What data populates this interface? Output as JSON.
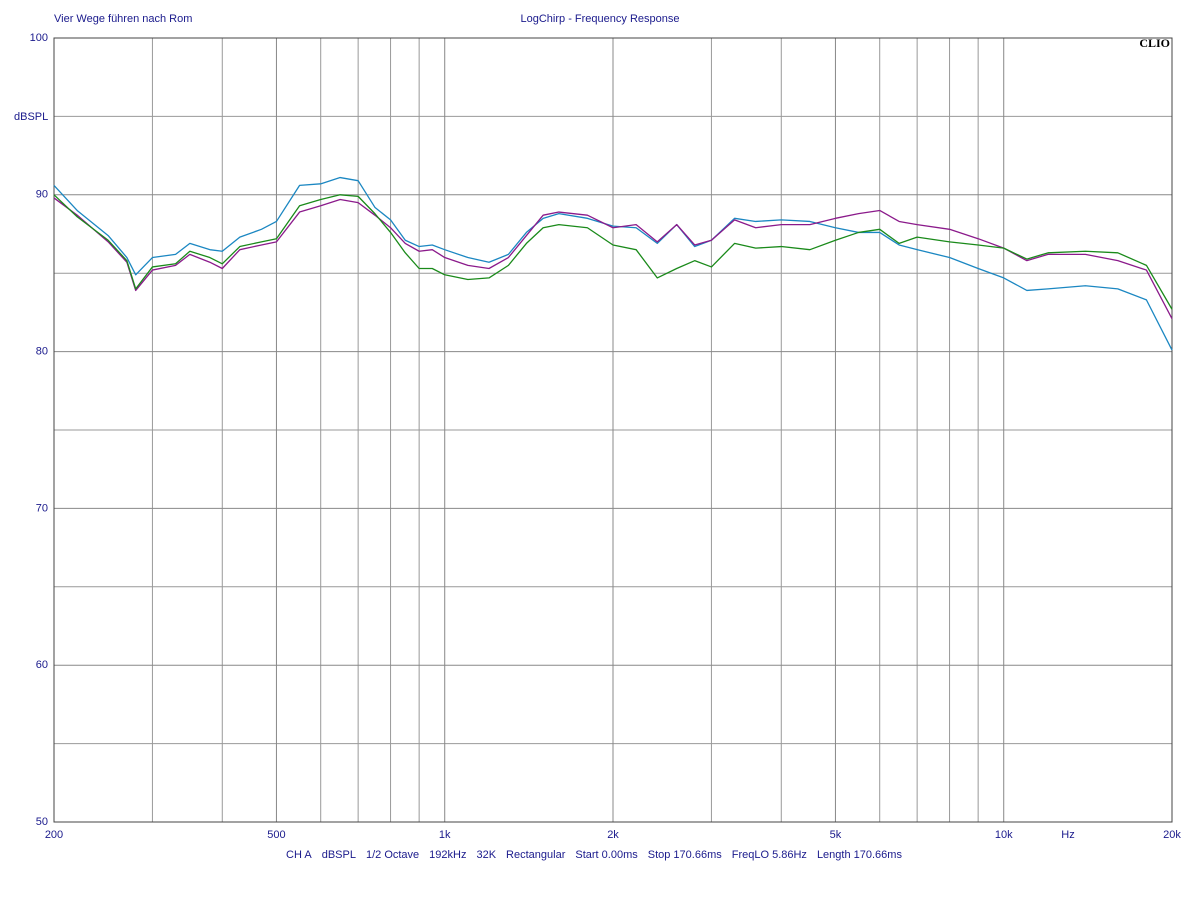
{
  "chart_data": {
    "type": "line",
    "title": "LogChirp - Frequency Response",
    "subtitle": "Vier Wege führen nach Rom",
    "brand": "CLIO",
    "y_label": "dBSPL",
    "x_label": "Hz",
    "footer": [
      "CH A",
      "dBSPL",
      "1/2 Octave",
      "192kHz",
      "32K",
      "Rectangular",
      "Start 0.00ms",
      "Stop 170.66ms",
      "FreqLO 5.86Hz",
      "Length 170.66ms"
    ],
    "log_x": true,
    "grid": true,
    "xlim": [
      200,
      20000
    ],
    "ylim": [
      50,
      100
    ],
    "xticks": [
      200,
      500,
      {
        "value": 1000,
        "label": "1k"
      },
      {
        "value": 2000,
        "label": "2k"
      },
      {
        "value": 5000,
        "label": "5k"
      },
      {
        "value": 10000,
        "label": "10k"
      },
      {
        "value": 20000,
        "label": "20k"
      }
    ],
    "x_minor_grid": [
      300,
      400,
      600,
      700,
      800,
      900,
      3000,
      4000,
      6000,
      7000,
      8000,
      9000
    ],
    "yticks": [
      50,
      60,
      70,
      80,
      90,
      100
    ],
    "y_minor_grid": [
      55,
      65,
      75,
      85,
      95
    ],
    "x": [
      200,
      220,
      250,
      270,
      280,
      300,
      330,
      350,
      380,
      400,
      430,
      470,
      500,
      550,
      600,
      650,
      700,
      750,
      800,
      850,
      900,
      950,
      1000,
      1100,
      1200,
      1300,
      1400,
      1500,
      1600,
      1800,
      2000,
      2200,
      2400,
      2600,
      2800,
      3000,
      3300,
      3600,
      4000,
      4500,
      5000,
      5500,
      6000,
      6500,
      7000,
      8000,
      9000,
      10000,
      11000,
      12000,
      14000,
      16000,
      18000,
      20000
    ],
    "series": [
      {
        "color": "#1b87c2",
        "values": [
          90.6,
          89.0,
          87.4,
          86.0,
          84.9,
          86.0,
          86.2,
          86.9,
          86.5,
          86.4,
          87.3,
          87.8,
          88.3,
          90.6,
          90.7,
          91.1,
          90.9,
          89.2,
          88.4,
          87.1,
          86.7,
          86.8,
          86.5,
          86.0,
          85.7,
          86.2,
          87.6,
          88.5,
          88.8,
          88.5,
          88.0,
          87.9,
          86.9,
          88.1,
          86.7,
          87.1,
          88.5,
          88.3,
          88.4,
          88.3,
          87.9,
          87.6,
          87.6,
          86.8,
          86.5,
          86.0,
          85.3,
          84.7,
          83.9,
          84.0,
          84.2,
          84.0,
          83.3,
          80.1
        ]
      },
      {
        "color": "#8b1a8b",
        "values": [
          89.8,
          88.7,
          87.0,
          85.7,
          83.9,
          85.2,
          85.5,
          86.2,
          85.7,
          85.3,
          86.5,
          86.8,
          87.0,
          88.9,
          89.3,
          89.7,
          89.5,
          88.7,
          87.9,
          86.9,
          86.4,
          86.5,
          86.0,
          85.5,
          85.3,
          86.0,
          87.4,
          88.7,
          88.9,
          88.7,
          87.9,
          88.1,
          87.0,
          88.1,
          86.8,
          87.1,
          88.4,
          87.9,
          88.1,
          88.1,
          88.5,
          88.8,
          89.0,
          88.3,
          88.1,
          87.8,
          87.2,
          86.6,
          85.8,
          86.2,
          86.2,
          85.8,
          85.2,
          82.1
        ]
      },
      {
        "color": "#1a8a1a",
        "values": [
          90.0,
          88.6,
          87.1,
          85.8,
          84.0,
          85.4,
          85.6,
          86.4,
          86.0,
          85.6,
          86.7,
          87.0,
          87.2,
          89.3,
          89.7,
          90.0,
          89.9,
          88.8,
          87.6,
          86.3,
          85.3,
          85.3,
          84.9,
          84.6,
          84.7,
          85.5,
          86.9,
          87.9,
          88.1,
          87.9,
          86.8,
          86.5,
          84.7,
          85.3,
          85.8,
          85.4,
          86.9,
          86.6,
          86.7,
          86.5,
          87.1,
          87.6,
          87.8,
          86.9,
          87.3,
          87.0,
          86.8,
          86.6,
          85.9,
          86.3,
          86.4,
          86.3,
          85.5,
          82.7
        ]
      }
    ]
  }
}
